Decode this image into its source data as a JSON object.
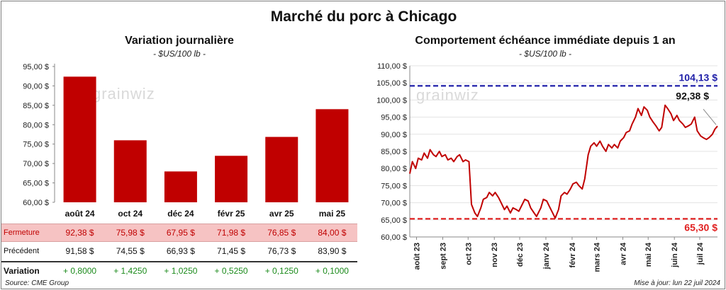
{
  "title": "Marché du porc à Chicago",
  "footer": {
    "source": "Source: CME Group",
    "updated": "Mise à jour: lun 22 juil 2024"
  },
  "watermark": "grainwiz",
  "left": {
    "title": "Variation journalière",
    "unit": "- $US/100 lb -"
  },
  "right": {
    "title": "Comportement échéance immédiate depuis 1 an",
    "unit": "- $US/100 lb -"
  },
  "table": {
    "rows": [
      {
        "label": "Fermeture",
        "cells": [
          "92,38 $",
          "75,98 $",
          "67,95 $",
          "71,98 $",
          "76,85 $",
          "84,00 $"
        ]
      },
      {
        "label": "Précédent",
        "cells": [
          "91,58 $",
          "74,55 $",
          "66,93 $",
          "71,45 $",
          "76,73 $",
          "83,90 $"
        ]
      },
      {
        "label": "Variation",
        "cells": [
          "+ 0,8000",
          "+ 1,4250",
          "+ 1,0250",
          "+ 0,5250",
          "+ 0,1250",
          "+ 0,1000"
        ]
      }
    ]
  },
  "colors": {
    "bar": "#c00000",
    "line": "#c00000",
    "high": "#1f1fa8",
    "low": "#e02020",
    "positive": "#1a8a1a",
    "fermeture_bg": "#f6c3c3"
  },
  "chart_data": [
    {
      "type": "bar",
      "title": "Variation journalière",
      "categories": [
        "août 24",
        "oct 24",
        "déc 24",
        "févr 25",
        "avr 25",
        "mai 25"
      ],
      "values": [
        92.38,
        75.98,
        67.95,
        71.98,
        76.85,
        84.0
      ],
      "ylim": [
        60,
        95
      ],
      "yticks": [
        "60,00 $",
        "65,00 $",
        "70,00 $",
        "75,00 $",
        "80,00 $",
        "85,00 $",
        "90,00 $",
        "95,00 $"
      ],
      "yticks_values": [
        60,
        65,
        70,
        75,
        80,
        85,
        90,
        95
      ],
      "grid": false
    },
    {
      "type": "line",
      "title": "Comportement échéance immédiate depuis 1 an",
      "x": [
        "2023-07-24",
        "2023-07-27",
        "2023-07-31",
        "2023-08-03",
        "2023-08-07",
        "2023-08-10",
        "2023-08-14",
        "2023-08-17",
        "2023-08-21",
        "2023-08-24",
        "2023-08-28",
        "2023-08-31",
        "2023-09-04",
        "2023-09-07",
        "2023-09-11",
        "2023-09-14",
        "2023-09-18",
        "2023-09-21",
        "2023-09-25",
        "2023-09-28",
        "2023-10-02",
        "2023-10-05",
        "2023-10-09",
        "2023-10-12",
        "2023-10-16",
        "2023-10-19",
        "2023-10-23",
        "2023-10-26",
        "2023-10-30",
        "2023-11-02",
        "2023-11-06",
        "2023-11-09",
        "2023-11-13",
        "2023-11-16",
        "2023-11-20",
        "2023-11-23",
        "2023-11-27",
        "2023-11-30",
        "2023-12-04",
        "2023-12-07",
        "2023-12-11",
        "2023-12-14",
        "2023-12-18",
        "2023-12-21",
        "2023-12-26",
        "2023-12-29",
        "2024-01-02",
        "2024-01-05",
        "2024-01-09",
        "2024-01-12",
        "2024-01-16",
        "2024-01-19",
        "2024-01-23",
        "2024-01-26",
        "2024-01-30",
        "2024-02-02",
        "2024-02-06",
        "2024-02-09",
        "2024-02-13",
        "2024-02-16",
        "2024-02-20",
        "2024-02-23",
        "2024-02-27",
        "2024-03-01",
        "2024-03-05",
        "2024-03-08",
        "2024-03-12",
        "2024-03-15",
        "2024-03-19",
        "2024-03-22",
        "2024-03-26",
        "2024-03-29",
        "2024-04-02",
        "2024-04-05",
        "2024-04-09",
        "2024-04-12",
        "2024-04-16",
        "2024-04-19",
        "2024-04-23",
        "2024-04-26",
        "2024-04-30",
        "2024-05-03",
        "2024-05-07",
        "2024-05-10",
        "2024-05-14",
        "2024-05-17",
        "2024-05-21",
        "2024-05-24",
        "2024-05-28",
        "2024-05-31",
        "2024-06-04",
        "2024-06-07",
        "2024-06-11",
        "2024-06-14",
        "2024-06-18",
        "2024-06-21",
        "2024-06-25",
        "2024-06-28",
        "2024-07-02",
        "2024-07-05",
        "2024-07-09",
        "2024-07-12",
        "2024-07-16",
        "2024-07-19",
        "2024-07-22"
      ],
      "y": [
        78.5,
        82.0,
        80.0,
        83.0,
        82.5,
        84.5,
        83.0,
        85.5,
        84.0,
        83.5,
        85.0,
        83.5,
        84.0,
        82.5,
        83.0,
        82.0,
        83.5,
        84.0,
        82.0,
        82.5,
        82.0,
        69.5,
        67.0,
        66.0,
        68.5,
        71.0,
        71.5,
        73.0,
        72.0,
        73.0,
        71.5,
        70.0,
        68.0,
        69.0,
        67.0,
        68.5,
        68.0,
        67.5,
        69.5,
        71.0,
        70.5,
        68.5,
        67.0,
        66.0,
        68.5,
        71.0,
        70.5,
        69.0,
        67.0,
        65.5,
        68.0,
        72.0,
        73.0,
        72.5,
        74.0,
        75.5,
        76.0,
        75.0,
        74.0,
        77.0,
        84.0,
        86.5,
        87.5,
        86.5,
        88.0,
        86.5,
        85.0,
        87.0,
        86.0,
        87.0,
        86.0,
        88.0,
        89.0,
        90.5,
        91.0,
        93.0,
        95.0,
        97.5,
        95.5,
        98.0,
        97.0,
        95.0,
        93.5,
        92.5,
        91.0,
        92.0,
        98.5,
        97.5,
        96.0,
        94.0,
        95.5,
        94.0,
        93.0,
        92.0,
        92.5,
        93.0,
        95.0,
        91.0,
        89.5,
        89.0,
        88.5,
        89.0,
        90.0,
        91.5,
        92.38
      ],
      "ylim": [
        60,
        110
      ],
      "yticks": [
        "60,00 $",
        "65,00 $",
        "70,00 $",
        "75,00 $",
        "80,00 $",
        "85,00 $",
        "90,00 $",
        "95,00 $",
        "100,00 $",
        "105,00 $",
        "110,00 $"
      ],
      "yticks_values": [
        60,
        65,
        70,
        75,
        80,
        85,
        90,
        95,
        100,
        105,
        110
      ],
      "xticks": [
        "août 23",
        "sept 23",
        "oct 23",
        "nov 23",
        "déc 23",
        "janv 24",
        "févr 24",
        "mars 24",
        "avr 24",
        "mai 24",
        "juin 24",
        "juil 24"
      ],
      "xticks_dates": [
        "2023-08-01",
        "2023-09-01",
        "2023-10-01",
        "2023-11-01",
        "2023-12-01",
        "2024-01-01",
        "2024-02-01",
        "2024-03-01",
        "2024-04-01",
        "2024-05-01",
        "2024-06-01",
        "2024-07-01"
      ],
      "x_range": [
        "2023-07-24",
        "2024-07-22"
      ],
      "hlines": [
        {
          "value": 104.13,
          "label": "104,13 $",
          "color": "#1f1fa8"
        },
        {
          "value": 65.3,
          "label": "65,30 $",
          "color": "#e02020"
        }
      ],
      "last_label": "92,38 $"
    }
  ]
}
